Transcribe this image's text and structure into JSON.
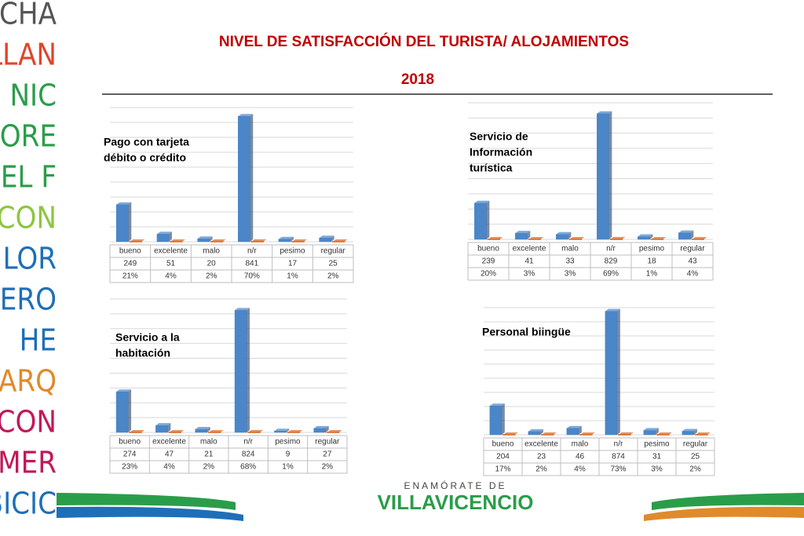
{
  "header": {
    "title": "NIVEL DE SATISFACCIÓN DEL TURISTA/ ALOJAMIENTOS",
    "year": "2018"
  },
  "side_words": [
    "CACHA",
    "ER LLAN",
    "NIC",
    "ADORE",
    "MER EL F",
    "LICON",
    "LOR",
    "ERO",
    "HE",
    "R EL PARQ",
    "N CON",
    "COMER",
    "R BICIC"
  ],
  "logo": {
    "top": "ENAMÓRATE DE",
    "name": "VILLAVICENCIO"
  },
  "chart_data": [
    {
      "type": "bar",
      "title": [
        "Pago con tarjeta",
        "débito o crédito"
      ],
      "categories": [
        "bueno",
        "excelente",
        "malo",
        "n/r",
        "pesimo",
        "regular"
      ],
      "series": [
        {
          "color": "#4a86c8",
          "values": [
            249,
            51,
            20,
            841,
            17,
            25
          ]
        },
        {
          "color": "#d9661f",
          "values": [
            0.21,
            0.04,
            0.02,
            0.7,
            0.01,
            0.02
          ],
          "value_labels": [
            "21%",
            "4%",
            "2%",
            "70%",
            "1%",
            "2%"
          ]
        }
      ],
      "ylim": [
        0,
        900
      ],
      "yticks": [
        0,
        100,
        200,
        300,
        400,
        500,
        600,
        700,
        800,
        900
      ],
      "grid": true
    },
    {
      "type": "bar",
      "title": [
        "Servicio de",
        "Información",
        "turística"
      ],
      "categories": [
        "bueno",
        "excelente",
        "malo",
        "n/r",
        "pesimo",
        "regular"
      ],
      "series": [
        {
          "color": "#4a86c8",
          "values": [
            239,
            41,
            33,
            829,
            18,
            43
          ]
        },
        {
          "color": "#d9661f",
          "values": [
            0.2,
            0.03,
            0.03,
            0.69,
            0.01,
            0.04
          ],
          "value_labels": [
            "20%",
            "3%",
            "3%",
            "69%",
            "1%",
            "4%"
          ]
        }
      ],
      "ylim": [
        0,
        900
      ],
      "yticks": [
        0,
        100,
        200,
        300,
        400,
        500,
        600,
        700,
        800,
        900
      ],
      "grid": true
    },
    {
      "type": "bar",
      "title": [
        "Servicio a la",
        "habitación"
      ],
      "categories": [
        "bueno",
        "excelente",
        "malo",
        "n/r",
        "pesimo",
        "regular"
      ],
      "series": [
        {
          "color": "#4a86c8",
          "values": [
            274,
            47,
            21,
            824,
            9,
            27
          ]
        },
        {
          "color": "#d9661f",
          "values": [
            0.23,
            0.04,
            0.02,
            0.68,
            0.01,
            0.02
          ],
          "value_labels": [
            "23%",
            "4%",
            "2%",
            "68%",
            "1%",
            "2%"
          ]
        }
      ],
      "ylim": [
        0,
        900
      ],
      "yticks": [
        0,
        100,
        200,
        300,
        400,
        500,
        600,
        700,
        800,
        900
      ],
      "grid": true
    },
    {
      "type": "bar",
      "title": [
        "Personal biingüe"
      ],
      "categories": [
        "bueno",
        "excelente",
        "malo",
        "n/r",
        "pesimo",
        "regular"
      ],
      "series": [
        {
          "color": "#4a86c8",
          "values": [
            204,
            23,
            46,
            874,
            31,
            25
          ]
        },
        {
          "color": "#d9661f",
          "values": [
            0.17,
            0.02,
            0.04,
            0.73,
            0.03,
            0.02
          ],
          "value_labels": [
            "17%",
            "2%",
            "4%",
            "73%",
            "3%",
            "2%"
          ]
        }
      ],
      "ylim": [
        0,
        900
      ],
      "yticks": [
        0,
        100,
        200,
        300,
        400,
        500,
        600,
        700,
        800,
        900
      ],
      "grid": true
    }
  ]
}
